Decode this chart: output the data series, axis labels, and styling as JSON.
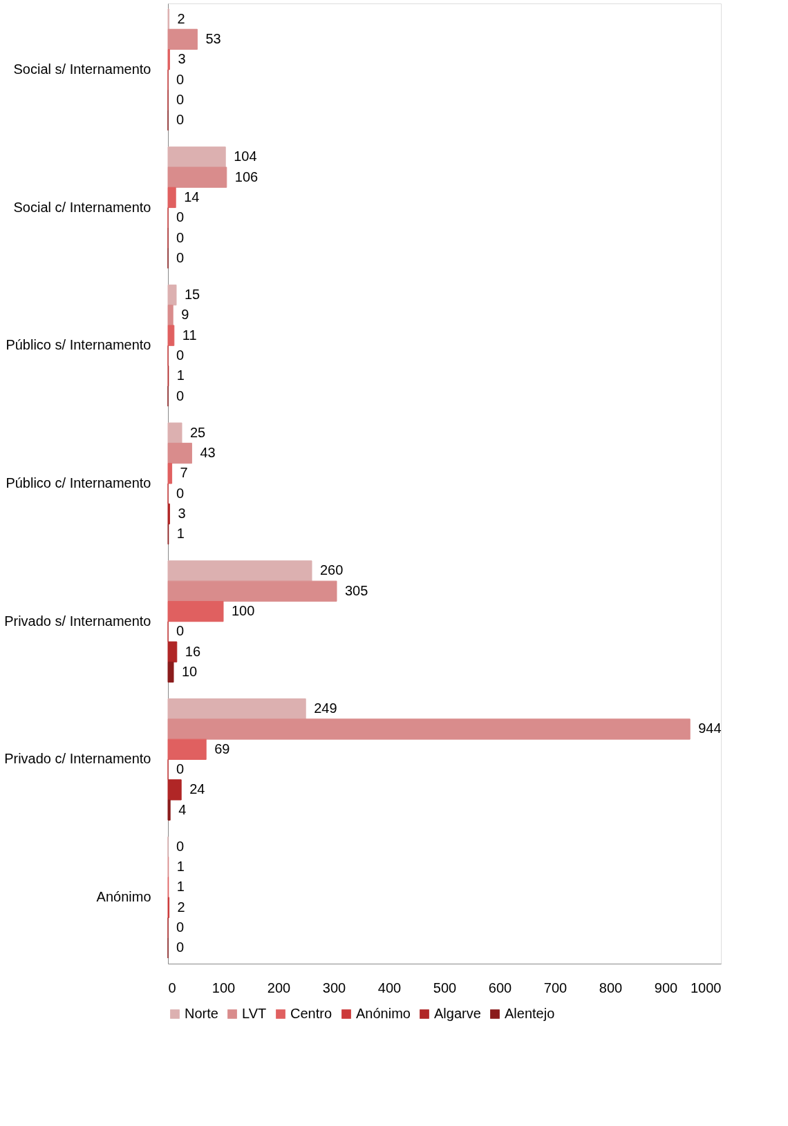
{
  "chart_data": {
    "type": "bar",
    "orientation": "horizontal",
    "categories": [
      "Social s/ Internamento",
      "Social c/ Internamento",
      "Público s/ Internamento",
      "Público c/ Internamento",
      "Privado s/ Internamento",
      "Privado c/ Internamento",
      "Anónimo"
    ],
    "series": [
      {
        "name": "Norte",
        "color": "#dcb0b0",
        "values": [
          2,
          104,
          15,
          25,
          260,
          249,
          0
        ]
      },
      {
        "name": "LVT",
        "color": "#d98c8c",
        "values": [
          53,
          106,
          9,
          43,
          305,
          944,
          1
        ]
      },
      {
        "name": "Centro",
        "color": "#e06060",
        "values": [
          3,
          14,
          11,
          7,
          100,
          69,
          1
        ]
      },
      {
        "name": "Anónimo",
        "color": "#cc3a3a",
        "values": [
          0,
          0,
          0,
          0,
          0,
          0,
          2
        ]
      },
      {
        "name": "Algarve",
        "color": "#b02626",
        "values": [
          0,
          0,
          1,
          3,
          16,
          24,
          0
        ]
      },
      {
        "name": "Alentejo",
        "color": "#8a1c1c",
        "values": [
          0,
          0,
          0,
          1,
          10,
          4,
          0
        ]
      }
    ],
    "xlim": [
      0,
      1000
    ],
    "xticks": [
      0,
      100,
      200,
      300,
      400,
      500,
      600,
      700,
      800,
      900,
      1000
    ],
    "data_labels": true,
    "grid": false,
    "legend": "bottom"
  }
}
